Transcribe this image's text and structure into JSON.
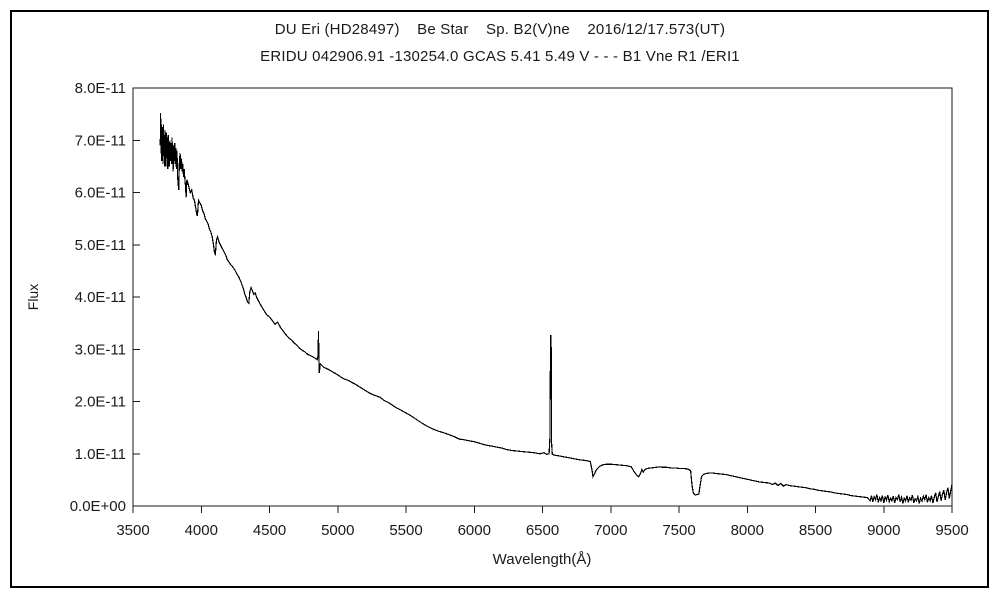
{
  "header": {
    "line1": "DU Eri (HD28497)    Be Star    Sp. B2(V)ne    2016/12/17.573(UT)",
    "line2": "ERIDU 042906.91 -130254.0 GCAS 5.41 5.49 V - - - B1 Vne R1 /ERI1"
  },
  "chart_data": {
    "type": "line",
    "title": "DU Eri (HD28497)  Be Star  Sp. B2(V)ne  2016/12/17.573(UT)",
    "subtitle": "ERIDU 042906.91 -130254.0 GCAS 5.41 5.49 V - - - B1 Vne R1 /ERI1",
    "xlabel": "Wavelength(Å)",
    "ylabel": "Flux",
    "xlim": [
      3500,
      9500
    ],
    "ylim_label": [
      "0.0E+00",
      "8.0E-11"
    ],
    "y_unit": "1e-11",
    "y_max_units": 8,
    "grid": false,
    "legend": "none",
    "line_color": "#000000",
    "x_ticks": [
      3500,
      4000,
      4500,
      5000,
      5500,
      6000,
      6500,
      7000,
      7500,
      8000,
      8500,
      9000,
      9500
    ],
    "x_tick_labels": [
      "3500",
      "4000",
      "4500",
      "5000",
      "5500",
      "6000",
      "6500",
      "7000",
      "7500",
      "8000",
      "8500",
      "9000",
      "9500"
    ],
    "y_ticks": [
      0,
      1,
      2,
      3,
      4,
      5,
      6,
      7,
      8
    ],
    "y_tick_labels": [
      "0.0E+00",
      "1.0E-11",
      "2.0E-11",
      "3.0E-11",
      "4.0E-11",
      "5.0E-11",
      "6.0E-11",
      "7.0E-11",
      "8.0E-11"
    ],
    "features": [
      {
        "name": "Hbeta emission spike",
        "wavelength": 4861,
        "peak_flux_units": 3.35
      },
      {
        "name": "Halpha emission spike",
        "wavelength": 6563,
        "peak_flux_units": 3.26
      },
      {
        "name": "telluric O2 B-band absorption",
        "wavelength": 6870,
        "min_flux_units": 0.56
      },
      {
        "name": "H2O band absorption",
        "wavelength": 7200,
        "min_flux_units": 0.56
      },
      {
        "name": "telluric O2 A-band absorption",
        "wavelength": 7615,
        "min_flux_units": 0.21
      }
    ],
    "points": [
      [
        3700,
        6.9
      ],
      [
        3702,
        7.52
      ],
      [
        3705,
        6.75
      ],
      [
        3708,
        7.3
      ],
      [
        3711,
        6.6
      ],
      [
        3714,
        7.25
      ],
      [
        3717,
        6.85
      ],
      [
        3720,
        6.55
      ],
      [
        3723,
        7.3
      ],
      [
        3726,
        6.7
      ],
      [
        3729,
        7.1
      ],
      [
        3732,
        6.5
      ],
      [
        3735,
        7.2
      ],
      [
        3738,
        6.85
      ],
      [
        3741,
        6.5
      ],
      [
        3744,
        7.15
      ],
      [
        3747,
        6.65
      ],
      [
        3750,
        7.05
      ],
      [
        3754,
        6.45
      ],
      [
        3758,
        7.1
      ],
      [
        3762,
        6.75
      ],
      [
        3766,
        6.5
      ],
      [
        3770,
        7.0
      ],
      [
        3774,
        6.6
      ],
      [
        3778,
        6.95
      ],
      [
        3782,
        6.55
      ],
      [
        3786,
        7.05
      ],
      [
        3790,
        6.7
      ],
      [
        3794,
        6.4
      ],
      [
        3798,
        6.9
      ],
      [
        3802,
        6.6
      ],
      [
        3806,
        6.95
      ],
      [
        3810,
        6.55
      ],
      [
        3814,
        6.85
      ],
      [
        3818,
        6.45
      ],
      [
        3822,
        6.8
      ],
      [
        3826,
        6.35
      ],
      [
        3830,
        6.2
      ],
      [
        3835,
        6.05
      ],
      [
        3840,
        6.6
      ],
      [
        3845,
        6.75
      ],
      [
        3850,
        6.45
      ],
      [
        3855,
        6.65
      ],
      [
        3860,
        6.4
      ],
      [
        3865,
        6.55
      ],
      [
        3870,
        6.3
      ],
      [
        3875,
        6.45
      ],
      [
        3880,
        6.25
      ],
      [
        3885,
        6.1
      ],
      [
        3889,
        5.9
      ],
      [
        3895,
        6.25
      ],
      [
        3900,
        6.2
      ],
      [
        3910,
        6.1
      ],
      [
        3920,
        6.0
      ],
      [
        3930,
        6.05
      ],
      [
        3940,
        5.9
      ],
      [
        3950,
        5.85
      ],
      [
        3960,
        5.7
      ],
      [
        3966,
        5.6
      ],
      [
        3972,
        5.55
      ],
      [
        3980,
        5.85
      ],
      [
        3990,
        5.8
      ],
      [
        4000,
        5.75
      ],
      [
        4010,
        5.65
      ],
      [
        4020,
        5.6
      ],
      [
        4030,
        5.5
      ],
      [
        4040,
        5.45
      ],
      [
        4050,
        5.4
      ],
      [
        4060,
        5.3
      ],
      [
        4070,
        5.25
      ],
      [
        4080,
        5.15
      ],
      [
        4090,
        5.0
      ],
      [
        4097,
        4.85
      ],
      [
        4104,
        4.82
      ],
      [
        4112,
        5.1
      ],
      [
        4120,
        5.15
      ],
      [
        4130,
        5.05
      ],
      [
        4140,
        5.0
      ],
      [
        4150,
        4.95
      ],
      [
        4160,
        4.9
      ],
      [
        4170,
        4.85
      ],
      [
        4180,
        4.8
      ],
      [
        4190,
        4.72
      ],
      [
        4200,
        4.68
      ],
      [
        4215,
        4.62
      ],
      [
        4230,
        4.58
      ],
      [
        4245,
        4.52
      ],
      [
        4260,
        4.45
      ],
      [
        4275,
        4.38
      ],
      [
        4290,
        4.3
      ],
      [
        4300,
        4.22
      ],
      [
        4310,
        4.15
      ],
      [
        4320,
        4.05
      ],
      [
        4330,
        3.98
      ],
      [
        4340,
        3.9
      ],
      [
        4348,
        3.88
      ],
      [
        4356,
        4.1
      ],
      [
        4365,
        4.18
      ],
      [
        4375,
        4.12
      ],
      [
        4385,
        4.05
      ],
      [
        4395,
        4.08
      ],
      [
        4405,
        4.0
      ],
      [
        4420,
        3.92
      ],
      [
        4435,
        3.85
      ],
      [
        4450,
        3.78
      ],
      [
        4465,
        3.72
      ],
      [
        4480,
        3.66
      ],
      [
        4500,
        3.62
      ],
      [
        4520,
        3.55
      ],
      [
        4540,
        3.48
      ],
      [
        4560,
        3.52
      ],
      [
        4580,
        3.42
      ],
      [
        4600,
        3.35
      ],
      [
        4620,
        3.28
      ],
      [
        4640,
        3.22
      ],
      [
        4660,
        3.18
      ],
      [
        4680,
        3.12
      ],
      [
        4700,
        3.08
      ],
      [
        4720,
        3.02
      ],
      [
        4740,
        2.98
      ],
      [
        4760,
        2.95
      ],
      [
        4780,
        2.9
      ],
      [
        4800,
        2.88
      ],
      [
        4820,
        2.85
      ],
      [
        4840,
        2.82
      ],
      [
        4852,
        2.8
      ],
      [
        4856,
        2.9
      ],
      [
        4859,
        3.35
      ],
      [
        4862,
        2.78
      ],
      [
        4865,
        2.55
      ],
      [
        4872,
        2.72
      ],
      [
        4880,
        2.7
      ],
      [
        4900,
        2.65
      ],
      [
        4920,
        2.63
      ],
      [
        4940,
        2.6
      ],
      [
        4960,
        2.57
      ],
      [
        4980,
        2.54
      ],
      [
        5000,
        2.51
      ],
      [
        5020,
        2.47
      ],
      [
        5040,
        2.44
      ],
      [
        5060,
        2.42
      ],
      [
        5080,
        2.4
      ],
      [
        5100,
        2.37
      ],
      [
        5130,
        2.33
      ],
      [
        5160,
        2.28
      ],
      [
        5190,
        2.23
      ],
      [
        5220,
        2.18
      ],
      [
        5250,
        2.14
      ],
      [
        5280,
        2.11
      ],
      [
        5310,
        2.08
      ],
      [
        5340,
        2.02
      ],
      [
        5370,
        1.98
      ],
      [
        5400,
        1.93
      ],
      [
        5430,
        1.88
      ],
      [
        5460,
        1.84
      ],
      [
        5500,
        1.78
      ],
      [
        5540,
        1.72
      ],
      [
        5580,
        1.65
      ],
      [
        5620,
        1.58
      ],
      [
        5660,
        1.52
      ],
      [
        5700,
        1.47
      ],
      [
        5740,
        1.43
      ],
      [
        5780,
        1.4
      ],
      [
        5820,
        1.36
      ],
      [
        5860,
        1.32
      ],
      [
        5890,
        1.28
      ],
      [
        5920,
        1.27
      ],
      [
        5960,
        1.25
      ],
      [
        6000,
        1.23
      ],
      [
        6040,
        1.2
      ],
      [
        6080,
        1.17
      ],
      [
        6120,
        1.15
      ],
      [
        6160,
        1.13
      ],
      [
        6200,
        1.11
      ],
      [
        6240,
        1.08
      ],
      [
        6280,
        1.06
      ],
      [
        6320,
        1.05
      ],
      [
        6360,
        1.04
      ],
      [
        6400,
        1.03
      ],
      [
        6440,
        1.02
      ],
      [
        6480,
        1.0
      ],
      [
        6510,
        1.02
      ],
      [
        6530,
        0.99
      ],
      [
        6548,
        1.0
      ],
      [
        6554,
        1.3
      ],
      [
        6559,
        3.26
      ],
      [
        6563,
        3.26
      ],
      [
        6567,
        1.2
      ],
      [
        6572,
        0.99
      ],
      [
        6590,
        0.97
      ],
      [
        6620,
        0.96
      ],
      [
        6660,
        0.94
      ],
      [
        6700,
        0.92
      ],
      [
        6740,
        0.9
      ],
      [
        6780,
        0.88
      ],
      [
        6820,
        0.87
      ],
      [
        6850,
        0.85
      ],
      [
        6862,
        0.7
      ],
      [
        6870,
        0.56
      ],
      [
        6878,
        0.6
      ],
      [
        6888,
        0.66
      ],
      [
        6900,
        0.71
      ],
      [
        6920,
        0.76
      ],
      [
        6945,
        0.79
      ],
      [
        6970,
        0.8
      ],
      [
        7000,
        0.8
      ],
      [
        7040,
        0.79
      ],
      [
        7080,
        0.78
      ],
      [
        7120,
        0.77
      ],
      [
        7150,
        0.75
      ],
      [
        7170,
        0.66
      ],
      [
        7190,
        0.59
      ],
      [
        7205,
        0.56
      ],
      [
        7218,
        0.62
      ],
      [
        7228,
        0.7
      ],
      [
        7238,
        0.65
      ],
      [
        7252,
        0.7
      ],
      [
        7270,
        0.72
      ],
      [
        7300,
        0.73
      ],
      [
        7330,
        0.74
      ],
      [
        7355,
        0.75
      ],
      [
        7380,
        0.74
      ],
      [
        7410,
        0.74
      ],
      [
        7440,
        0.73
      ],
      [
        7470,
        0.73
      ],
      [
        7500,
        0.72
      ],
      [
        7530,
        0.72
      ],
      [
        7560,
        0.71
      ],
      [
        7585,
        0.68
      ],
      [
        7595,
        0.4
      ],
      [
        7605,
        0.25
      ],
      [
        7618,
        0.21
      ],
      [
        7632,
        0.22
      ],
      [
        7645,
        0.23
      ],
      [
        7655,
        0.4
      ],
      [
        7665,
        0.56
      ],
      [
        7678,
        0.6
      ],
      [
        7695,
        0.62
      ],
      [
        7720,
        0.63
      ],
      [
        7750,
        0.63
      ],
      [
        7780,
        0.62
      ],
      [
        7810,
        0.61
      ],
      [
        7845,
        0.6
      ],
      [
        7880,
        0.58
      ],
      [
        7915,
        0.56
      ],
      [
        7950,
        0.54
      ],
      [
        7985,
        0.52
      ],
      [
        8020,
        0.5
      ],
      [
        8055,
        0.48
      ],
      [
        8090,
        0.46
      ],
      [
        8125,
        0.45
      ],
      [
        8160,
        0.44
      ],
      [
        8185,
        0.41
      ],
      [
        8205,
        0.44
      ],
      [
        8225,
        0.39
      ],
      [
        8245,
        0.43
      ],
      [
        8265,
        0.38
      ],
      [
        8285,
        0.41
      ],
      [
        8310,
        0.39
      ],
      [
        8340,
        0.38
      ],
      [
        8370,
        0.37
      ],
      [
        8400,
        0.36
      ],
      [
        8430,
        0.35
      ],
      [
        8460,
        0.33
      ],
      [
        8490,
        0.32
      ],
      [
        8520,
        0.3
      ],
      [
        8550,
        0.29
      ],
      [
        8580,
        0.28
      ],
      [
        8610,
        0.27
      ],
      [
        8640,
        0.25
      ],
      [
        8670,
        0.24
      ],
      [
        8700,
        0.23
      ],
      [
        8730,
        0.22
      ],
      [
        8760,
        0.2
      ],
      [
        8790,
        0.19
      ],
      [
        8820,
        0.18
      ],
      [
        8850,
        0.17
      ],
      [
        8880,
        0.16
      ],
      [
        8900,
        0.1
      ],
      [
        8910,
        0.2
      ],
      [
        8920,
        0.08
      ],
      [
        8930,
        0.18
      ],
      [
        8940,
        0.12
      ],
      [
        8950,
        0.22
      ],
      [
        8960,
        0.07
      ],
      [
        8970,
        0.16
      ],
      [
        8980,
        0.1
      ],
      [
        8990,
        0.2
      ],
      [
        9000,
        0.06
      ],
      [
        9010,
        0.17
      ],
      [
        9020,
        0.11
      ],
      [
        9030,
        0.21
      ],
      [
        9040,
        0.08
      ],
      [
        9050,
        0.15
      ],
      [
        9060,
        0.1
      ],
      [
        9070,
        0.19
      ],
      [
        9080,
        0.06
      ],
      [
        9090,
        0.16
      ],
      [
        9100,
        0.12
      ],
      [
        9110,
        0.22
      ],
      [
        9120,
        0.08
      ],
      [
        9130,
        0.17
      ],
      [
        9140,
        0.05
      ],
      [
        9150,
        0.15
      ],
      [
        9160,
        0.1
      ],
      [
        9170,
        0.2
      ],
      [
        9180,
        0.07
      ],
      [
        9190,
        0.16
      ],
      [
        9200,
        0.11
      ],
      [
        9210,
        0.21
      ],
      [
        9220,
        0.06
      ],
      [
        9230,
        0.14
      ],
      [
        9240,
        0.1
      ],
      [
        9250,
        0.18
      ],
      [
        9260,
        0.05
      ],
      [
        9270,
        0.15
      ],
      [
        9280,
        0.09
      ],
      [
        9290,
        0.19
      ],
      [
        9300,
        0.12
      ],
      [
        9310,
        0.22
      ],
      [
        9320,
        0.07
      ],
      [
        9330,
        0.16
      ],
      [
        9340,
        0.1
      ],
      [
        9350,
        0.2
      ],
      [
        9360,
        0.06
      ],
      [
        9370,
        0.17
      ],
      [
        9380,
        0.25
      ],
      [
        9390,
        0.08
      ],
      [
        9400,
        0.18
      ],
      [
        9410,
        0.28
      ],
      [
        9420,
        0.1
      ],
      [
        9430,
        0.22
      ],
      [
        9440,
        0.3
      ],
      [
        9450,
        0.12
      ],
      [
        9460,
        0.25
      ],
      [
        9470,
        0.35
      ],
      [
        9480,
        0.15
      ],
      [
        9490,
        0.28
      ],
      [
        9500,
        0.42
      ]
    ]
  }
}
